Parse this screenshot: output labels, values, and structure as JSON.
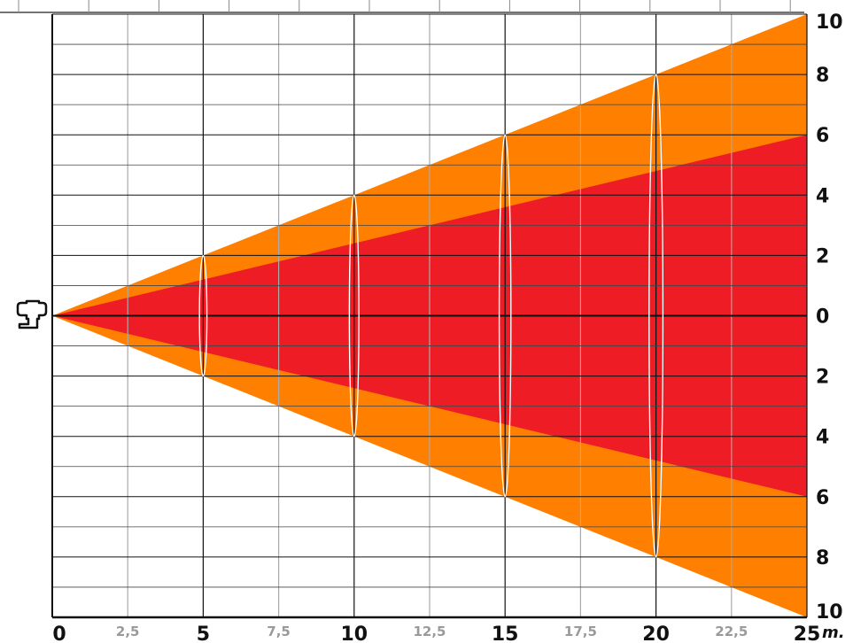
{
  "chart_data": {
    "type": "area",
    "title": "",
    "xlabel": "m.",
    "ylabel": "",
    "xlim": [
      0,
      25
    ],
    "ylim": [
      -10,
      10
    ],
    "grid": true,
    "x_ticks": [
      {
        "value": 0,
        "label": "0",
        "major": true
      },
      {
        "value": 2.5,
        "label": "2,5",
        "major": false
      },
      {
        "value": 5,
        "label": "5",
        "major": true
      },
      {
        "value": 7.5,
        "label": "7,5",
        "major": false
      },
      {
        "value": 10,
        "label": "10",
        "major": true
      },
      {
        "value": 12.5,
        "label": "12,5",
        "major": false
      },
      {
        "value": 15,
        "label": "15",
        "major": true
      },
      {
        "value": 17.5,
        "label": "17,5",
        "major": false
      },
      {
        "value": 20,
        "label": "20",
        "major": true
      },
      {
        "value": 22.5,
        "label": "22,5",
        "major": false
      },
      {
        "value": 25,
        "label": "25",
        "major": true
      }
    ],
    "y_ticks": [
      {
        "value": 10,
        "label": "10"
      },
      {
        "value": 8,
        "label": "8"
      },
      {
        "value": 6,
        "label": "6"
      },
      {
        "value": 4,
        "label": "4"
      },
      {
        "value": 2,
        "label": "2"
      },
      {
        "value": 0,
        "label": "0"
      },
      {
        "value": -2,
        "label": "2"
      },
      {
        "value": -4,
        "label": "4"
      },
      {
        "value": -6,
        "label": "6"
      },
      {
        "value": -8,
        "label": "8"
      },
      {
        "value": -10,
        "label": "10"
      }
    ],
    "series": [
      {
        "color": "#ff7f00",
        "x": [
          0,
          25
        ],
        "upper": [
          0,
          10
        ],
        "lower": [
          0,
          -10
        ]
      },
      {
        "color": "#ee1c25",
        "x": [
          0,
          25
        ],
        "upper": [
          0,
          6
        ],
        "lower": [
          0,
          -6
        ]
      }
    ],
    "spot_ellipses": [
      {
        "x": 5,
        "half_height": 2
      },
      {
        "x": 10,
        "half_height": 4
      },
      {
        "x": 15,
        "half_height": 6
      },
      {
        "x": 20,
        "half_height": 8
      }
    ],
    "origin_icon": "spotlight-icon"
  }
}
